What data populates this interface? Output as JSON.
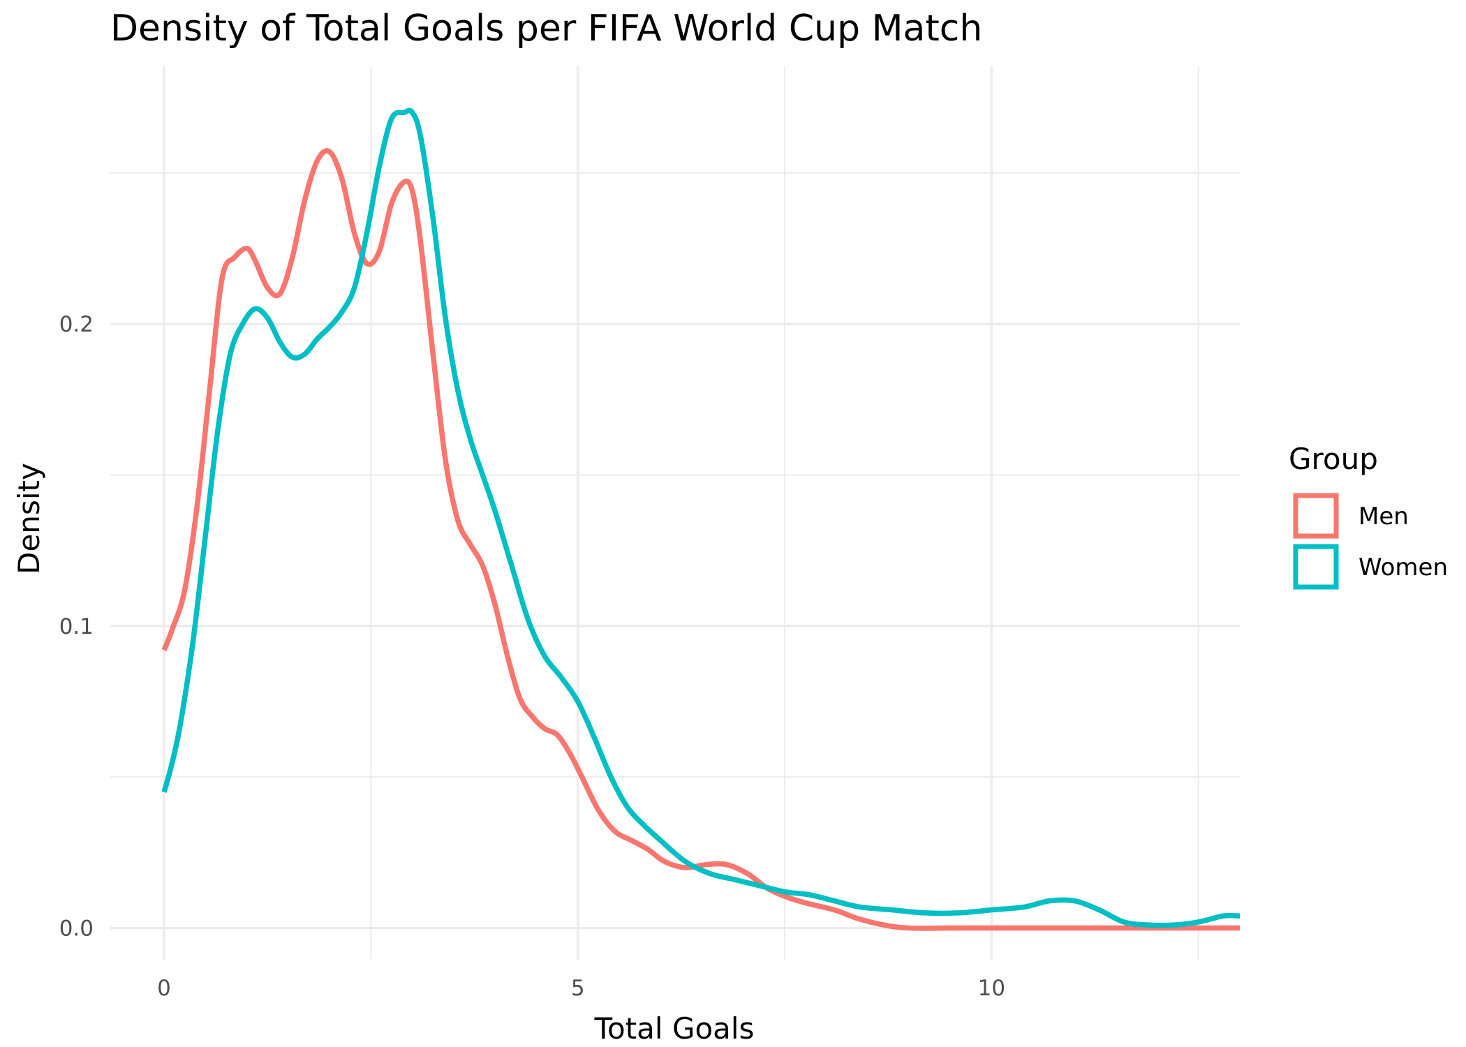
{
  "chart_data": {
    "type": "line",
    "title": "Density of Total Goals per FIFA World Cup Match",
    "xlabel": "Total Goals",
    "ylabel": "Density",
    "xlim": [
      -0.65,
      13.0
    ],
    "ylim": [
      -0.0105,
      0.2853
    ],
    "x_ticks": [
      0,
      5,
      10
    ],
    "x_tick_labels": [
      "0",
      "5",
      "10"
    ],
    "x_minor": [
      2.5,
      7.5,
      12.5
    ],
    "y_ticks": [
      0.0,
      0.1,
      0.2
    ],
    "y_tick_labels": [
      "0.0",
      "0.1",
      "0.2"
    ],
    "y_minor": [
      0.05,
      0.15,
      0.25
    ],
    "grid": true,
    "legend": {
      "title": "Group",
      "position": "right"
    },
    "series": [
      {
        "name": "Men",
        "color": "#F8766D",
        "x": [
          0,
          0.1,
          0.25,
          0.4,
          0.55,
          0.7,
          0.85,
          1.0,
          1.1,
          1.25,
          1.4,
          1.55,
          1.7,
          1.85,
          2.0,
          2.15,
          2.3,
          2.45,
          2.6,
          2.75,
          2.9,
          3.0,
          3.1,
          3.25,
          3.4,
          3.55,
          3.7,
          3.85,
          4.0,
          4.15,
          4.3,
          4.45,
          4.6,
          4.75,
          4.9,
          5.05,
          5.25,
          5.45,
          5.65,
          5.85,
          6.05,
          6.3,
          6.55,
          6.8,
          7.05,
          7.3,
          7.55,
          7.8,
          8.1,
          8.4,
          8.7,
          9.0,
          9.5,
          10.0,
          11.0,
          12.0,
          13.0
        ],
        "y": [
          0.092,
          0.099,
          0.112,
          0.14,
          0.178,
          0.215,
          0.222,
          0.225,
          0.221,
          0.212,
          0.21,
          0.222,
          0.241,
          0.254,
          0.257,
          0.248,
          0.23,
          0.22,
          0.224,
          0.24,
          0.247,
          0.244,
          0.227,
          0.19,
          0.155,
          0.135,
          0.127,
          0.12,
          0.107,
          0.09,
          0.076,
          0.07,
          0.066,
          0.064,
          0.058,
          0.05,
          0.039,
          0.032,
          0.029,
          0.026,
          0.022,
          0.02,
          0.021,
          0.021,
          0.018,
          0.013,
          0.01,
          0.008,
          0.006,
          0.003,
          0.001,
          0.0,
          0.0,
          0.0,
          0.0,
          0.0,
          0.0
        ]
      },
      {
        "name": "Women",
        "color": "#00BFC4",
        "x": [
          0,
          0.1,
          0.2,
          0.35,
          0.5,
          0.65,
          0.8,
          0.95,
          1.1,
          1.25,
          1.4,
          1.55,
          1.7,
          1.85,
          2.0,
          2.15,
          2.3,
          2.45,
          2.6,
          2.75,
          2.9,
          3.0,
          3.1,
          3.25,
          3.4,
          3.55,
          3.7,
          3.85,
          4.0,
          4.2,
          4.4,
          4.6,
          4.8,
          5.0,
          5.2,
          5.4,
          5.6,
          5.8,
          6.0,
          6.3,
          6.6,
          6.9,
          7.2,
          7.5,
          7.8,
          8.1,
          8.4,
          8.8,
          9.2,
          9.6,
          10.0,
          10.4,
          10.7,
          11.0,
          11.3,
          11.6,
          11.9,
          12.2,
          12.5,
          12.8,
          13.0
        ],
        "y": [
          0.045,
          0.055,
          0.068,
          0.095,
          0.13,
          0.165,
          0.19,
          0.2,
          0.205,
          0.202,
          0.194,
          0.189,
          0.19,
          0.195,
          0.199,
          0.204,
          0.212,
          0.23,
          0.252,
          0.268,
          0.27,
          0.27,
          0.262,
          0.235,
          0.202,
          0.178,
          0.162,
          0.15,
          0.138,
          0.12,
          0.102,
          0.09,
          0.083,
          0.075,
          0.063,
          0.05,
          0.04,
          0.034,
          0.029,
          0.022,
          0.018,
          0.016,
          0.014,
          0.012,
          0.011,
          0.009,
          0.007,
          0.006,
          0.005,
          0.005,
          0.006,
          0.007,
          0.009,
          0.009,
          0.006,
          0.002,
          0.001,
          0.001,
          0.002,
          0.004,
          0.004
        ]
      }
    ]
  }
}
